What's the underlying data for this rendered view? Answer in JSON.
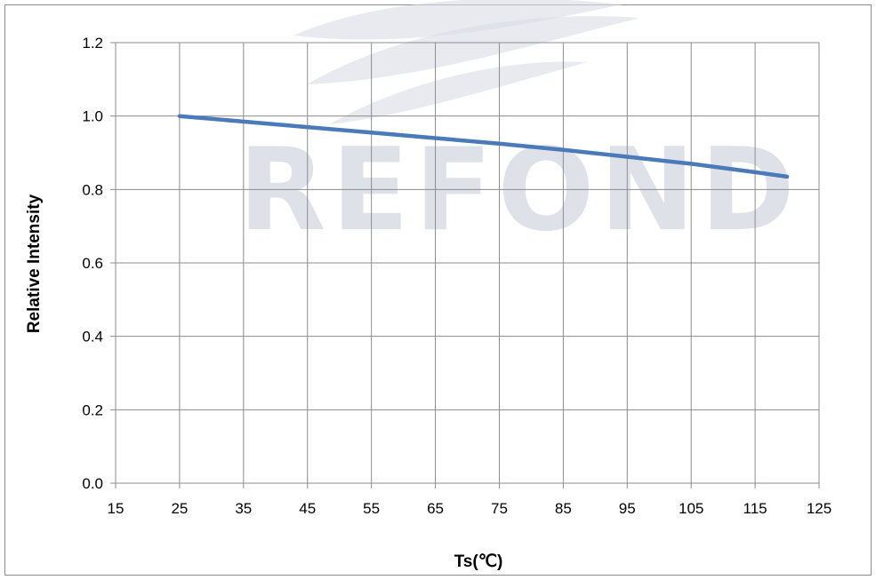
{
  "watermark": "REFOND",
  "colors": {
    "series": "#4a7ab8",
    "grid": "#8c8c8c",
    "watermark": "#c6cad6"
  },
  "chart_data": {
    "type": "line",
    "title": "",
    "xlabel": "Ts(℃)",
    "ylabel": "Relative Intensity",
    "xlim": [
      15,
      125
    ],
    "ylim": [
      0,
      1.2
    ],
    "xticks": [
      "15",
      "25",
      "35",
      "45",
      "55",
      "65",
      "75",
      "85",
      "95",
      "105",
      "115",
      "125"
    ],
    "yticks": [
      "0.0",
      "0.2",
      "0.4",
      "0.6",
      "0.8",
      "1.0",
      "1.2"
    ],
    "grid": true,
    "legend": "none",
    "series": [
      {
        "x": [
          25,
          35,
          45,
          55,
          65,
          75,
          85,
          95,
          105,
          115,
          120
        ],
        "y": [
          1.0,
          0.985,
          0.97,
          0.955,
          0.94,
          0.925,
          0.908,
          0.889,
          0.87,
          0.847,
          0.835
        ]
      }
    ]
  }
}
